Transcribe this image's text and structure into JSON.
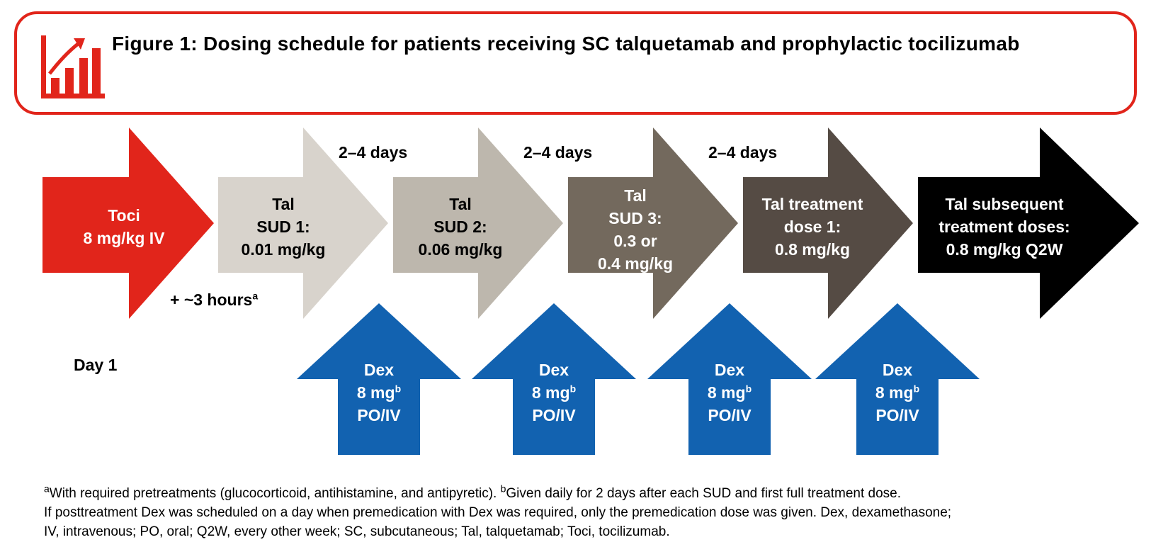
{
  "title": "Figure 1: Dosing schedule for patients receiving SC talquetamab and prophylactic tocilizumab",
  "icon": "chart-growth-icon",
  "colors": {
    "accent": "#e1251b",
    "dex_blue": "#1262b0",
    "stage_fills": [
      "#e1251b",
      "#d8d3cc",
      "#bdb7ad",
      "#73695d",
      "#554b44",
      "#000000"
    ]
  },
  "stages": [
    {
      "lines": [
        "Toci",
        "8 mg/kg IV"
      ]
    },
    {
      "lines": [
        "Tal",
        "SUD 1:",
        "0.01 mg/kg"
      ]
    },
    {
      "lines": [
        "Tal",
        "SUD 2:",
        "0.06 mg/kg"
      ]
    },
    {
      "lines": [
        "Tal",
        "SUD 3:",
        "0.3 or",
        "0.4 mg/kg"
      ]
    },
    {
      "lines": [
        "Tal treatment",
        "dose 1:",
        "0.8 mg/kg"
      ]
    },
    {
      "lines": [
        "Tal subsequent",
        "treatment doses:",
        "0.8 mg/kg Q2W"
      ]
    }
  ],
  "intervals": {
    "first": {
      "text": "+ ~3 hours",
      "sup": "a"
    },
    "between": [
      "2–4 days",
      "2–4 days",
      "2–4 days"
    ]
  },
  "day_label": "Day 1",
  "dex": {
    "line1": "Dex",
    "line2": "8 mg",
    "line2_sup": "b",
    "line3": "PO/IV",
    "count": 4
  },
  "footnotes": {
    "a_marker": "a",
    "a_text": "With required pretreatments (glucocorticoid, antihistamine, and antipyretic). ",
    "b_marker": "b",
    "b_text": "Given daily for 2 days after each SUD and first full treatment dose.",
    "line2": "If posttreatment Dex was scheduled on a day when premedication with Dex was required, only the premedication dose was given. Dex, dexamethasone;",
    "line3": "IV, intravenous; PO, oral; Q2W, every other week; SC, subcutaneous; Tal, talquetamab; Toci, tocilizumab."
  }
}
